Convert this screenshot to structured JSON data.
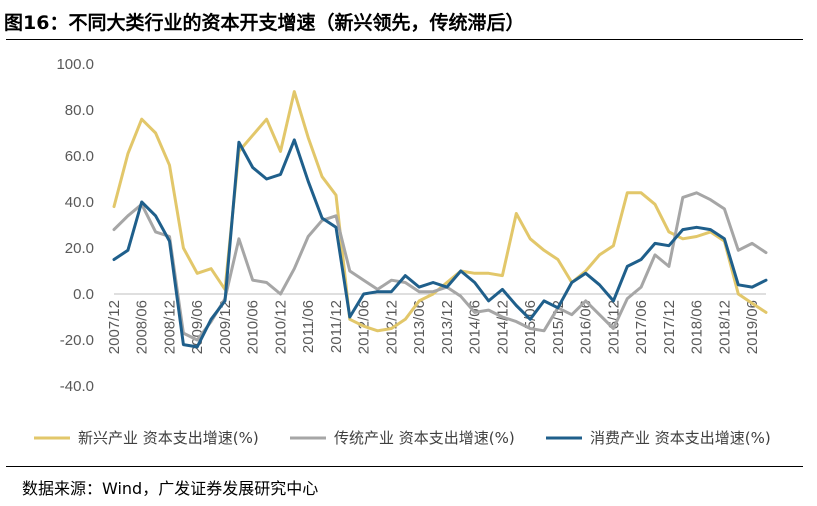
{
  "title": "图16：不同大类行业的资本开支增速（新兴领先，传统滞后）",
  "source": "数据来源：Wind，广发证券发展研究中心",
  "colors": {
    "emerging": "#E2C76A",
    "traditional": "#A6A6A6",
    "consumer": "#1F5F8B",
    "axis": "#BFBFBF",
    "text": "#595959"
  },
  "chart_data": {
    "type": "line",
    "title": "不同大类行业的资本开支增速（新兴领先，传统滞后）",
    "xlabel": "",
    "ylabel": "",
    "ylim": [
      -40,
      100
    ],
    "yticks": [
      -40,
      -20,
      0,
      20,
      40,
      60,
      80,
      100
    ],
    "ytick_labels": [
      "-40.0",
      "-20.0",
      "0.0",
      "20.0",
      "40.0",
      "60.0",
      "80.0",
      "100.0"
    ],
    "x": [
      "2007/12",
      "2008/03",
      "2008/06",
      "2008/09",
      "2008/12",
      "2009/03",
      "2009/06",
      "2009/09",
      "2009/12",
      "2010/03",
      "2010/06",
      "2010/09",
      "2010/12",
      "2011/03",
      "2011/06",
      "2011/09",
      "2011/12",
      "2012/03",
      "2012/06",
      "2012/09",
      "2012/12",
      "2013/03",
      "2013/06",
      "2013/09",
      "2013/12",
      "2014/03",
      "2014/06",
      "2014/09",
      "2014/12",
      "2015/03",
      "2015/06",
      "2015/09",
      "2015/12",
      "2016/03",
      "2016/06",
      "2016/09",
      "2016/12",
      "2017/03",
      "2017/06",
      "2017/09",
      "2017/12",
      "2018/03",
      "2018/06",
      "2018/09",
      "2018/12",
      "2019/03",
      "2019/06",
      "2019/09"
    ],
    "xtick_labels": [
      "2007/12",
      "2008/06",
      "2008/12",
      "2009/06",
      "2009/12",
      "2010/06",
      "2010/12",
      "2011/06",
      "2011/12",
      "2012/06",
      "2012/12",
      "2013/06",
      "2013/12",
      "2014/06",
      "2014/12",
      "2015/06",
      "2015/12",
      "2016/06",
      "2016/12",
      "2017/06",
      "2017/12",
      "2018/06",
      "2018/12",
      "2019/06"
    ],
    "legend_position": "bottom",
    "series": [
      {
        "name": "新兴产业 资本支出增速(%)",
        "color_key": "emerging",
        "values": [
          38,
          61,
          76,
          70,
          56,
          20,
          9,
          11,
          2,
          62,
          69,
          76,
          62,
          88,
          68,
          51,
          43,
          -11,
          -14,
          -16,
          -15,
          -11,
          -3,
          0,
          5,
          10,
          9,
          9,
          8,
          35,
          24,
          19,
          15,
          5,
          10,
          17,
          21,
          44,
          44,
          39,
          27,
          24,
          25,
          27,
          23,
          0,
          -4,
          -8
        ]
      },
      {
        "name": "传统产业 资本支出增速(%)",
        "color_key": "traditional",
        "values": [
          28,
          34,
          39,
          27,
          25,
          -17,
          -20,
          -12,
          -2,
          24,
          6,
          5,
          0,
          11,
          25,
          32,
          34,
          10,
          6,
          2,
          6,
          5,
          1,
          1,
          3,
          -1,
          -8,
          -7,
          -10,
          -12,
          -15,
          -16,
          -6,
          -9,
          -3,
          -9,
          -15,
          -2,
          3,
          17,
          12,
          42,
          44,
          41,
          37,
          19,
          22,
          18
        ]
      },
      {
        "name": "消费产业 资本支出增速(%)",
        "color_key": "consumer",
        "values": [
          15,
          19,
          40,
          34,
          23,
          -22,
          -23,
          -11,
          -3,
          66,
          55,
          50,
          52,
          67,
          49,
          33,
          29,
          -10,
          0,
          1,
          1,
          8,
          3,
          5,
          3,
          10,
          5,
          -3,
          2,
          -5,
          -11,
          -3,
          -6,
          5,
          9,
          4,
          -3,
          12,
          15,
          22,
          21,
          28,
          29,
          28,
          24,
          4,
          3,
          6
        ]
      }
    ]
  }
}
